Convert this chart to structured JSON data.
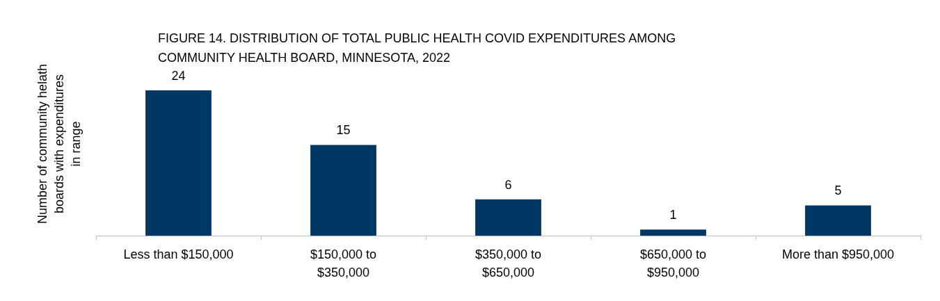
{
  "chart_data": {
    "type": "bar",
    "title": "FIGURE 14. DISTRIBUTION OF TOTAL PUBLIC HEALTH COVID EXPENDITURES AMONG COMMUNITY HEALTH BOARD, MINNESOTA, 2022",
    "ylabel": "Number of community helath boards with expenditures in range",
    "categories": [
      "Less than $150,000",
      "$150,000 to $350,000",
      "$350,000 to $650,000",
      "$650,000 to $950,000",
      "More than $950,000"
    ],
    "values": [
      24,
      15,
      6,
      1,
      5
    ],
    "color": "#003865",
    "data_labels": true,
    "grid": false
  }
}
